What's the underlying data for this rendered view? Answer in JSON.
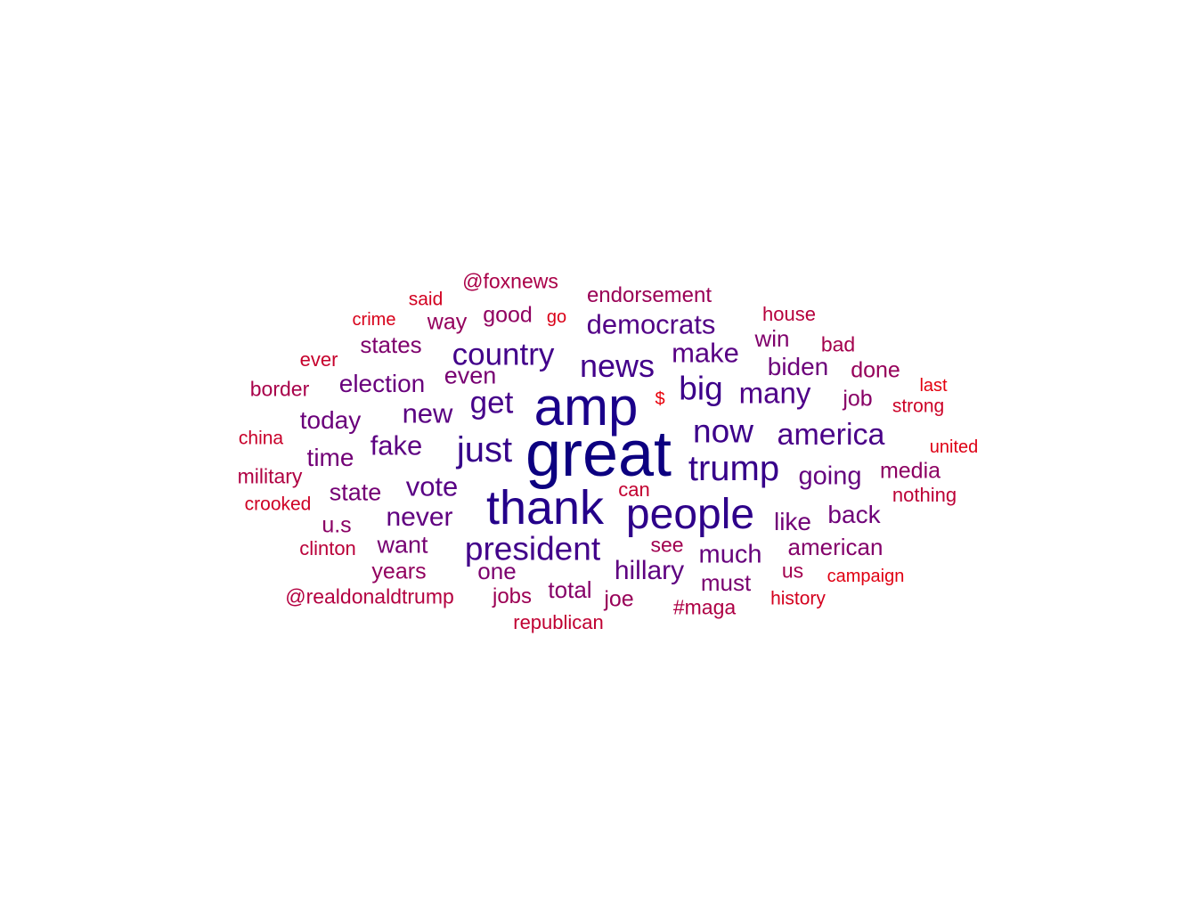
{
  "words": [
    {
      "text": "great",
      "freq": 1.0,
      "color": "#0c0080"
    },
    {
      "text": "amp",
      "freq": 0.86,
      "color": "#1a008a"
    },
    {
      "text": "thank",
      "freq": 0.79,
      "color": "#24008a"
    },
    {
      "text": "people",
      "freq": 0.7,
      "color": "#2e008a"
    },
    {
      "text": "trump",
      "freq": 0.61,
      "color": "#36008a"
    },
    {
      "text": "just",
      "freq": 0.6,
      "color": "#36008a"
    },
    {
      "text": "president",
      "freq": 0.55,
      "color": "#42008a"
    },
    {
      "text": "now",
      "freq": 0.55,
      "color": "#3c008a"
    },
    {
      "text": "big",
      "freq": 0.54,
      "color": "#3c008a"
    },
    {
      "text": "news",
      "freq": 0.52,
      "color": "#42008a"
    },
    {
      "text": "country",
      "freq": 0.5,
      "color": "#42008a"
    },
    {
      "text": "get",
      "freq": 0.5,
      "color": "#46008a"
    },
    {
      "text": "america",
      "freq": 0.49,
      "color": "#4a0088"
    },
    {
      "text": "many",
      "freq": 0.48,
      "color": "#4e0088"
    },
    {
      "text": "democrats",
      "freq": 0.45,
      "color": "#520086"
    },
    {
      "text": "make",
      "freq": 0.45,
      "color": "#580084"
    },
    {
      "text": "vote",
      "freq": 0.45,
      "color": "#580084"
    },
    {
      "text": "new",
      "freq": 0.44,
      "color": "#5a0082"
    },
    {
      "text": "fake",
      "freq": 0.44,
      "color": "#5c0082"
    },
    {
      "text": "hillary",
      "freq": 0.43,
      "color": "#5e0080"
    },
    {
      "text": "never",
      "freq": 0.43,
      "color": "#600080"
    },
    {
      "text": "going",
      "freq": 0.42,
      "color": "#64007e"
    },
    {
      "text": "much",
      "freq": 0.42,
      "color": "#66007c"
    },
    {
      "text": "election",
      "freq": 0.41,
      "color": "#68007c"
    },
    {
      "text": "today",
      "freq": 0.41,
      "color": "#6a007a"
    },
    {
      "text": "biden",
      "freq": 0.41,
      "color": "#6c007a"
    },
    {
      "text": "back",
      "freq": 0.41,
      "color": "#6e0078"
    },
    {
      "text": "like",
      "freq": 0.4,
      "color": "#700076"
    },
    {
      "text": "time",
      "freq": 0.4,
      "color": "#720076"
    },
    {
      "text": "state",
      "freq": 0.39,
      "color": "#740074"
    },
    {
      "text": "want",
      "freq": 0.39,
      "color": "#760072"
    },
    {
      "text": "even",
      "freq": 0.39,
      "color": "#780072"
    },
    {
      "text": "must",
      "freq": 0.38,
      "color": "#7a0070"
    },
    {
      "text": "one",
      "freq": 0.38,
      "color": "#7c006e"
    },
    {
      "text": "states",
      "freq": 0.38,
      "color": "#7e006c"
    },
    {
      "text": "win",
      "freq": 0.37,
      "color": "#80006c"
    },
    {
      "text": "american",
      "freq": 0.37,
      "color": "#84006a"
    },
    {
      "text": "total",
      "freq": 0.37,
      "color": "#860068"
    },
    {
      "text": "job",
      "freq": 0.36,
      "color": "#880066"
    },
    {
      "text": "u.s",
      "freq": 0.36,
      "color": "#8a0064"
    },
    {
      "text": "media",
      "freq": 0.36,
      "color": "#8c0062"
    },
    {
      "text": "good",
      "freq": 0.35,
      "color": "#900060"
    },
    {
      "text": "years",
      "freq": 0.35,
      "color": "#92005e"
    },
    {
      "text": "way",
      "freq": 0.35,
      "color": "#94005c"
    },
    {
      "text": "done",
      "freq": 0.35,
      "color": "#96005a"
    },
    {
      "text": "joe",
      "freq": 0.35,
      "color": "#980058"
    },
    {
      "text": "endorsement",
      "freq": 0.34,
      "color": "#9a0056"
    },
    {
      "text": "jobs",
      "freq": 0.34,
      "color": "#9c0054"
    },
    {
      "text": "see",
      "freq": 0.33,
      "color": "#a00050"
    },
    {
      "text": "us",
      "freq": 0.33,
      "color": "#a2004e"
    },
    {
      "text": "bad",
      "freq": 0.33,
      "color": "#a4004c"
    },
    {
      "text": "border",
      "freq": 0.33,
      "color": "#a8004a"
    },
    {
      "text": "@foxnews",
      "freq": 0.33,
      "color": "#aa0048"
    },
    {
      "text": "#maga",
      "freq": 0.33,
      "color": "#ae0044"
    },
    {
      "text": "military",
      "freq": 0.33,
      "color": "#b00042"
    },
    {
      "text": "@realdonaldtrump",
      "freq": 0.33,
      "color": "#b40040"
    },
    {
      "text": "house",
      "freq": 0.32,
      "color": "#b6003c"
    },
    {
      "text": "clinton",
      "freq": 0.32,
      "color": "#ba003a"
    },
    {
      "text": "nothing",
      "freq": 0.32,
      "color": "#bc0036"
    },
    {
      "text": "republican",
      "freq": 0.32,
      "color": "#c00032"
    },
    {
      "text": "can",
      "freq": 0.32,
      "color": "#c20030"
    },
    {
      "text": "ever",
      "freq": 0.32,
      "color": "#c6002c"
    },
    {
      "text": "china",
      "freq": 0.31,
      "color": "#c8002a"
    },
    {
      "text": "strong",
      "freq": 0.31,
      "color": "#cc0026"
    },
    {
      "text": "crooked",
      "freq": 0.31,
      "color": "#ce0024"
    },
    {
      "text": "said",
      "freq": 0.31,
      "color": "#d20020"
    },
    {
      "text": "history",
      "freq": 0.31,
      "color": "#d4001e"
    },
    {
      "text": "crime",
      "freq": 0.3,
      "color": "#d8001a"
    },
    {
      "text": "go",
      "freq": 0.3,
      "color": "#da0018"
    },
    {
      "text": "united",
      "freq": 0.3,
      "color": "#de0014"
    },
    {
      "text": "campaign",
      "freq": 0.3,
      "color": "#e00012"
    },
    {
      "text": "last",
      "freq": 0.29,
      "color": "#e4000e"
    },
    {
      "text": "$",
      "freq": 0.29,
      "color": "#e8000a"
    }
  ]
}
